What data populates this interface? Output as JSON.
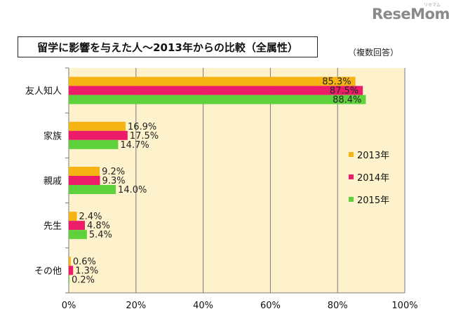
{
  "brand": {
    "logo": "ReseMom",
    "logo_kana": "リセマム"
  },
  "note": "（複数回答）",
  "colors": {
    "plot_bg": "#fdf2cc",
    "s2013": "#f5b414",
    "s2014": "#ec1c6a",
    "s2015": "#5fd13c"
  },
  "chart_data": {
    "type": "bar",
    "orientation": "horizontal",
    "title": "留学に影響を与えた人～2013年からの比較（全属性）",
    "categories": [
      "友人知人",
      "家族",
      "親戚",
      "先生",
      "その他"
    ],
    "series": [
      {
        "name": "2013年",
        "values": [
          85.3,
          16.9,
          9.2,
          2.4,
          0.6
        ],
        "labels": [
          "85.3%",
          "16.9%",
          "9.2%",
          "2.4%",
          "0.6%"
        ]
      },
      {
        "name": "2014年",
        "values": [
          87.5,
          17.5,
          9.3,
          4.8,
          1.3
        ],
        "labels": [
          "87.5%",
          "17.5%",
          "9.3%",
          "4.8%",
          "1.3%"
        ]
      },
      {
        "name": "2015年",
        "values": [
          88.4,
          14.7,
          14.0,
          5.4,
          0.2
        ],
        "labels": [
          "88.4%",
          "14.7%",
          "14.0%",
          "5.4%",
          "0.2%"
        ]
      }
    ],
    "xlim": [
      0,
      100
    ],
    "xticks": [
      "0%",
      "20%",
      "40%",
      "60%",
      "80%",
      "100%"
    ],
    "grid": true,
    "legend": "right"
  }
}
